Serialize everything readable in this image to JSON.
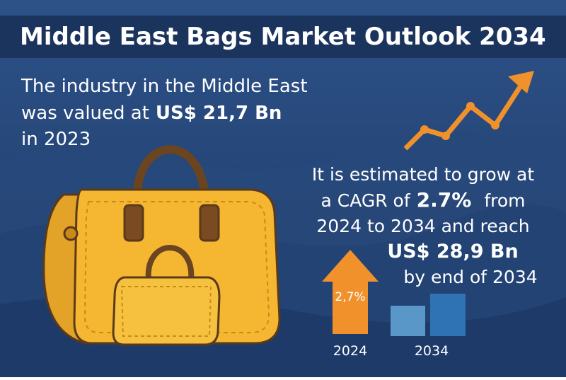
{
  "header": {
    "title": "Middle East Bags Market Outlook 2034"
  },
  "intro": {
    "line1": "The industry in the Middle East",
    "line2_prefix": "was valued at",
    "line2_value": "US$ 21,7 Bn",
    "line3": "in 2023"
  },
  "forecast": {
    "line1": "It is estimated to grow at",
    "line2_prefix": "a CAGR of",
    "line2_value": "2.7%",
    "line2_suffix": "from",
    "line3": "2024 to 2034 and reach",
    "line4": "US$ 28,9 Bn",
    "line5": "by end of 2034"
  },
  "growth_graphic": {
    "arrow_label": "2,7%",
    "labels": [
      "2024",
      "2034"
    ]
  }
}
